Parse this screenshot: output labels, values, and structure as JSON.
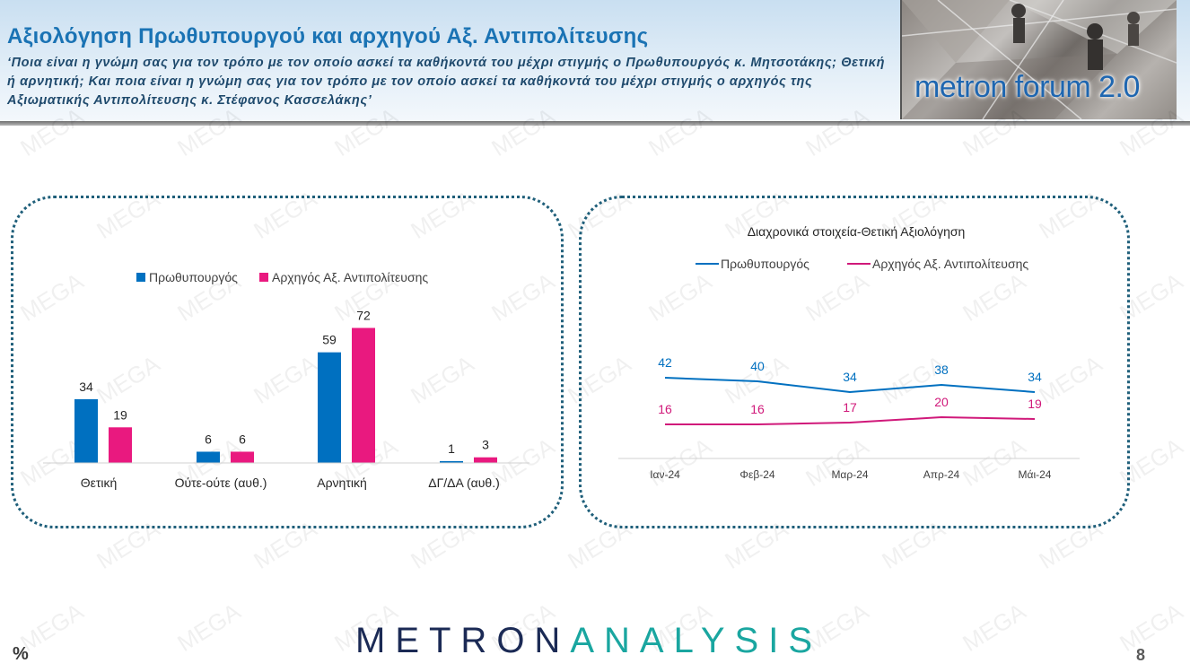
{
  "header": {
    "title": "Αξιολόγηση Πρωθυπουργού και αρχηγού Αξ. Αντιπολίτευσης",
    "subtitle": "‘Ποια είναι η γνώμη σας για τον τρόπο με τον οποίο ασκεί τα καθήκοντά του μέχρι στιγμής ο Πρωθυπουργός κ. Μητσοτάκης; Θετική ή αρνητική; Και ποια είναι η γνώμη σας για τον τρόπο με τον οποίο ασκεί τα καθήκοντά του μέχρι στιγμής ο αρχηγός της Αξιωματικής Αντιπολίτευσης κ. Στέφανος Κασσελάκης’",
    "forum_logo": "metron forum 2.0"
  },
  "watermark_text": "MEGA",
  "chart_data": [
    {
      "type": "bar",
      "categories": [
        "Θετική",
        "Ούτε-ούτε (αυθ.)",
        "Αρνητική",
        "ΔΓ/ΔΑ (αυθ.)"
      ],
      "series": [
        {
          "name": "Πρωθυπουργός",
          "values": [
            34,
            6,
            59,
            1
          ],
          "color": "#0070c0"
        },
        {
          "name": "Αρχηγός Αξ. Αντιπολίτευσης",
          "values": [
            19,
            6,
            72,
            3
          ],
          "color": "#e9197f"
        }
      ],
      "legend": "top",
      "ylim": [
        0,
        80
      ],
      "grid": false
    },
    {
      "type": "line",
      "title": "Διαχρονικά στοιχεία-Θετική Αξιολόγηση",
      "categories": [
        "Ιαν-24",
        "Φεβ-24",
        "Μαρ-24",
        "Απρ-24",
        "Μάι-24"
      ],
      "series": [
        {
          "name": "Πρωθυπουργός",
          "values": [
            42,
            40,
            34,
            38,
            34
          ],
          "color": "#0070c0"
        },
        {
          "name": "Αρχηγός Αξ. Αντιπολίτευσης",
          "values": [
            16,
            16,
            17,
            20,
            19
          ],
          "color": "#d0197a"
        }
      ],
      "legend": "top",
      "ylim": [
        0,
        80
      ],
      "grid": false
    }
  ],
  "footer": {
    "logo_part1": "METRON",
    "logo_part2": "ANALYSIS",
    "unit": "%",
    "page_number": "8"
  }
}
